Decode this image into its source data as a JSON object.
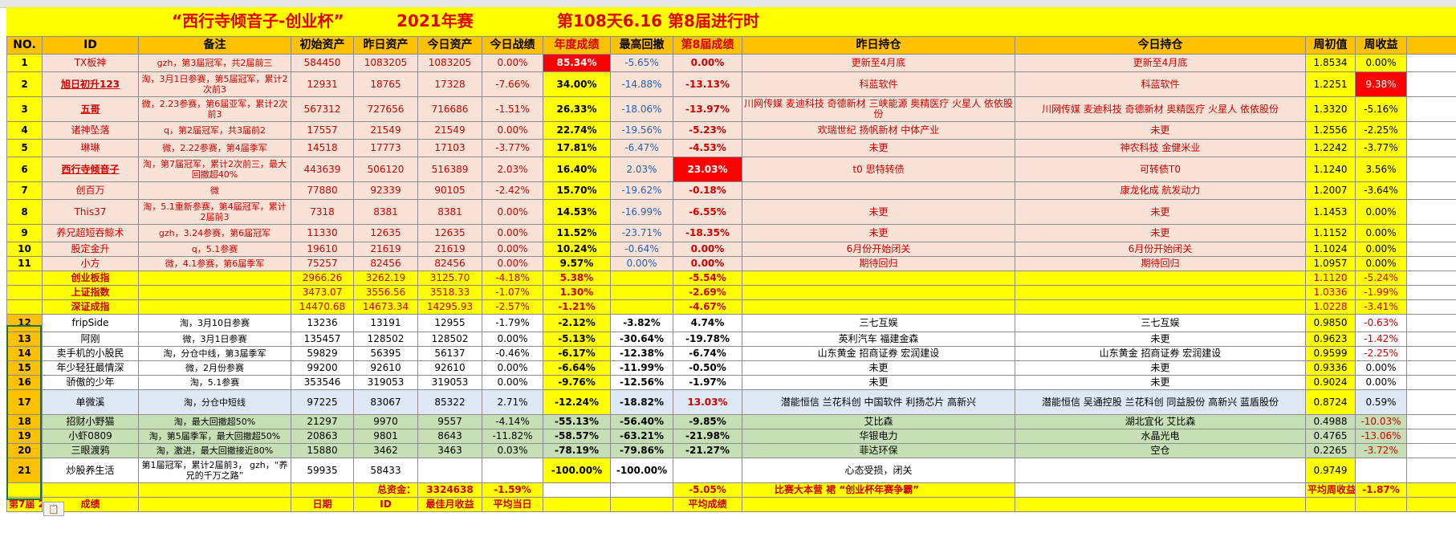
{
  "title": {
    "main": "“西行寺倾音子-创业杯”",
    "year": "2021年赛",
    "status": "第108天6.16  第8届进行时"
  },
  "headers": [
    "NO.",
    "ID",
    "备注",
    "初始资产",
    "昨日资产",
    "今日资产",
    "今日战绩",
    "年度成绩",
    "最高回撤",
    "第8届成绩",
    "昨日持仓",
    "今日持仓",
    "周初值",
    "周收益"
  ],
  "rows": [
    [
      "1",
      "TX板神",
      "gzh，第3届冠军，共2届前三",
      "584450",
      "1083205",
      "1083205",
      "0.00%",
      "85.34%",
      "-5.65%",
      "0.00%",
      "更新至4月底",
      "更新至4月底",
      "1.8534",
      "0.00%"
    ],
    [
      "2",
      "旭日初升123",
      "淘，3月1日参赛，第5届冠军，累计2次前3",
      "12931",
      "18765",
      "17328",
      "-7.66%",
      "34.00%",
      "-14.88%",
      "-13.13%",
      "科蓝软件",
      "科蓝软件",
      "1.2251",
      "9.38%"
    ],
    [
      "3",
      "五哥",
      "微，2.23参赛，第6届亚军，累计2次前3",
      "567312",
      "727656",
      "716686",
      "-1.51%",
      "26.33%",
      "-18.06%",
      "-13.97%",
      "川网传媒 麦迪科技 奇德新材 三峡能源 奥精医疗 火星人 依依股份",
      "川网传媒 麦迪科技 奇德新材  奥精医疗 火星人 依依股份",
      "1.3320",
      "-5.16%"
    ],
    [
      "4",
      "诸神坠落",
      "q，第2届冠军，共3届前2",
      "17557",
      "21549",
      "21549",
      "0.00%",
      "22.74%",
      "-19.56%",
      "-5.23%",
      "欢瑞世纪 扬帆新材 中体产业",
      "未更",
      "1.2556",
      "-2.25%"
    ],
    [
      "5",
      "琳琳",
      "微，2.22参赛，第4届季军",
      "14518",
      "17773",
      "17103",
      "-3.77%",
      "17.81%",
      "-6.47%",
      "-4.53%",
      "未更",
      "神农科技 金健米业",
      "1.2242",
      "-3.77%"
    ],
    [
      "6",
      "西行寺倾音子",
      "淘，第7届冠军，累计2次前三，最大回撤超40%",
      "443639",
      "506120",
      "516389",
      "2.03%",
      "16.40%",
      "2.03%",
      "23.03%",
      "t0  思特转债",
      "可转债T0",
      "1.1240",
      "3.56%"
    ],
    [
      "7",
      "创百万",
      "微",
      "77880",
      "92339",
      "90105",
      "-2.42%",
      "15.70%",
      "-19.62%",
      "-0.18%",
      "",
      "康龙化成 航发动力",
      "1.2007",
      "-3.64%"
    ],
    [
      "8",
      "This37",
      "淘，5.1重新参赛，第4届冠军，累计2届前3",
      "7318",
      "8381",
      "8381",
      "0.00%",
      "14.53%",
      "-16.99%",
      "-6.55%",
      "未更",
      "未更",
      "1.1453",
      "0.00%"
    ],
    [
      "9",
      "养兄超短吞鲸术",
      "gzh，3.24参赛，第6届冠军",
      "11330",
      "12635",
      "12635",
      "0.00%",
      "11.52%",
      "-23.71%",
      "-18.35%",
      "未更",
      "未更",
      "1.1152",
      "0.00%"
    ],
    [
      "10",
      "股定金升",
      "q，5.1参赛",
      "19610",
      "21619",
      "21619",
      "0.00%",
      "10.24%",
      "-0.64%",
      "0.00%",
      "6月份开始闭关",
      "6月份开始闭关",
      "1.1024",
      "0.00%"
    ],
    [
      "11",
      "小方",
      "微，4.1参赛，第6届季军",
      "75257",
      "82456",
      "82456",
      "0.00%",
      "9.57%",
      "0.00%",
      "0.00%",
      "期待回归",
      "期待回归",
      "1.0957",
      "0.00%"
    ],
    [
      "",
      "创业板指",
      "",
      "2966.26",
      "3262.19",
      "3125.70",
      "-4.18%",
      "5.38%",
      "",
      "-5.54%",
      "",
      "",
      "1.1120",
      "-5.24%"
    ],
    [
      "",
      "上证指数",
      "",
      "3473.07",
      "3556.56",
      "3518.33",
      "-1.07%",
      "1.30%",
      "",
      "-2.69%",
      "",
      "",
      "1.0336",
      "-1.99%"
    ],
    [
      "",
      "深证成指",
      "",
      "14470.68",
      "14673.34",
      "14295.93",
      "-2.57%",
      "-1.21%",
      "",
      "-4.67%",
      "",
      "",
      "1.0228",
      "-3.41%"
    ],
    [
      "12",
      "fripSide",
      "淘，3月10日参赛",
      "13236",
      "13191",
      "12955",
      "-1.79%",
      "-2.12%",
      "-3.82%",
      "4.74%",
      "三七互娱",
      "三七互娱",
      "0.9850",
      "-0.63%"
    ],
    [
      "13",
      "阿刚",
      "微，3月1日参赛",
      "135457",
      "128502",
      "128502",
      "0.00%",
      "-5.13%",
      "-30.64%",
      "-19.78%",
      "英利汽车 福建金森",
      "未更",
      "0.9623",
      "-1.42%"
    ],
    [
      "14",
      "卖手机的小股民",
      "淘，分仓中线，第3届季军",
      "59829",
      "56395",
      "56137",
      "-0.46%",
      "-6.17%",
      "-12.38%",
      "-6.74%",
      "山东黄金 招商证券 宏润建设",
      "山东黄金 招商证券 宏润建设",
      "0.9599",
      "-2.25%"
    ],
    [
      "15",
      "年少轻狂最情深",
      "微，2月份参赛",
      "99200",
      "92610",
      "92610",
      "0.00%",
      "-6.64%",
      "-11.99%",
      "-0.50%",
      "未更",
      "未更",
      "0.9336",
      "0.00%"
    ],
    [
      "16",
      "骄傲的少年",
      "淘，5.1参赛",
      "353546",
      "319053",
      "319053",
      "0.00%",
      "-9.76%",
      "-12.56%",
      "-1.97%",
      "未更",
      "未更",
      "0.9024",
      "0.00%"
    ],
    [
      "17",
      "单微溪",
      "淘，分仓中短线",
      "97225",
      "83067",
      "85322",
      "2.71%",
      "-12.24%",
      "-18.82%",
      "13.03%",
      "潜能恒信 兰花科创 中国软件 利扬芯片 高新兴",
      "潜能恒信 吴通控股 兰花科创 同益股份 高新兴 蓝盾股份",
      "0.8724",
      "0.59%"
    ],
    [
      "18",
      "招财小野猫",
      "淘，最大回撤超50%",
      "21297",
      "9970",
      "9557",
      "-4.14%",
      "-55.13%",
      "-56.40%",
      "-9.85%",
      "艾比森",
      "湖北宜化 艾比森",
      "0.4988",
      "-10.03%"
    ],
    [
      "19",
      "小虾0809",
      "淘，第5届季军，最大回撤超50%",
      "20863",
      "9801",
      "8643",
      "-11.82%",
      "-58.57%",
      "-63.21%",
      "-21.98%",
      "华银电力",
      "水晶光电",
      "0.4765",
      "-13.06%"
    ],
    [
      "20",
      "三眼渡鸦",
      "淘，激进，最大回撤接近80%",
      "15880",
      "3462",
      "3463",
      "0.03%",
      "-78.19%",
      "-79.86%",
      "-21.27%",
      "菲达环保",
      "空仓",
      "0.2265",
      "-3.72%"
    ],
    [
      "21",
      "炒股养生活",
      "第1届冠军，累计2届前3， gzh，“养兄的千万之路”",
      "59935",
      "58433",
      "",
      "",
      "-100.00%",
      "-100.00%",
      "",
      "心态受损，闭关",
      "",
      "0.9749",
      ""
    ]
  ],
  "summary": {
    "total_label": "总资金：",
    "total_value": "3324638",
    "total_change": "-1.59%",
    "avg8": "-5.05%",
    "slogan": "比赛大本营 裙 “创业杯年赛争霸”",
    "avg_week_label": "平均周收益",
    "avg_week_value": "-1.87%"
  },
  "bottom_row": {
    "season": "第7届 21/5",
    "score": "成绩",
    "date": "日期",
    "id": "ID",
    "best_month": "最佳月收益",
    "avg_day": "平均当日",
    "avg_score": "平均成绩"
  },
  "paste_icon": "clipboard-icon"
}
